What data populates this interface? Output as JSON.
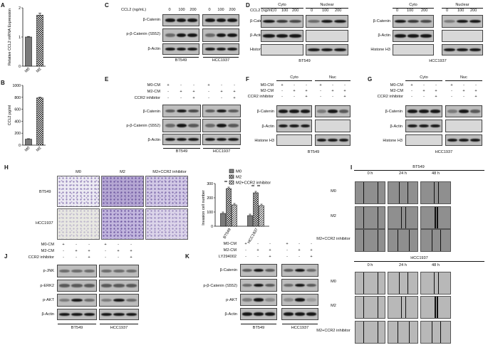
{
  "panels": {
    "A": "A",
    "B": "B",
    "C": "C",
    "D": "D",
    "E": "E",
    "F": "F",
    "G": "G",
    "H": "H",
    "I": "I",
    "J": "J",
    "K": "K"
  },
  "chart_data": [
    {
      "type": "bar",
      "panel": "A",
      "categories": [
        "M0",
        "M2"
      ],
      "values": [
        1.0,
        1.75
      ],
      "errors": [
        0.02,
        0.07
      ],
      "ylabel": "Relative CCL2 mRNA Expression",
      "ylim": [
        0,
        2
      ],
      "yticks": [
        0,
        1,
        2
      ],
      "grid": false
    },
    {
      "type": "bar",
      "panel": "B",
      "categories": [
        "M0",
        "M2"
      ],
      "values": [
        100,
        790
      ],
      "errors": [
        8,
        12
      ],
      "ylabel": "CCL2 pg/ml",
      "ylim": [
        0,
        1000
      ],
      "yticks": [
        0,
        200,
        400,
        600,
        800,
        1000
      ],
      "grid": false
    },
    {
      "type": "bar",
      "panel": "H",
      "ylabel": "Invasion cell number",
      "categories": [
        "BT549",
        "HCC1937"
      ],
      "ylim": [
        0,
        300
      ],
      "yticks": [
        0,
        100,
        200,
        300
      ],
      "series": [
        {
          "name": "M0",
          "values": [
            90,
            75
          ]
        },
        {
          "name": "M2",
          "values": [
            265,
            235
          ]
        },
        {
          "name": "M2+CCR2 inhibitor",
          "values": [
            150,
            145
          ]
        }
      ],
      "significance": [
        "**",
        "**",
        "**",
        "**"
      ],
      "legend": "top-right"
    }
  ],
  "C": {
    "ccl2_label": "CCL2 (ng/mL)",
    "doses": [
      "0",
      "100",
      "200"
    ],
    "rows": [
      "β-Catenin",
      "p-β-Catenin (S552)",
      "β-Actin"
    ],
    "cells": [
      "BT549",
      "HCC1937"
    ]
  },
  "D": {
    "ccl2_label": "CCL2 (ng/ml)",
    "doses": [
      "0",
      "100",
      "200"
    ],
    "groups": [
      "Cyto",
      "Nuclear"
    ],
    "rows": [
      "β-Catenin",
      "β-Actin",
      "Histone H3"
    ],
    "cells": [
      "BT549",
      "HCC1937"
    ]
  },
  "E": {
    "conds": [
      "M0-CM",
      "M2-CM",
      "CCR2 inhibitor"
    ],
    "signs": [
      [
        "+",
        "-",
        "-",
        "+",
        "-",
        "-"
      ],
      [
        "-",
        "+",
        "+",
        "-",
        "+",
        "+"
      ],
      [
        "-",
        "-",
        "+",
        "-",
        "-",
        "+"
      ]
    ],
    "rows": [
      "β-Catenin",
      "p-β-Catenin (S552)",
      "β-Actin"
    ],
    "cells": [
      "BT549",
      "HCC1937"
    ]
  },
  "F": {
    "groups": [
      "Cyto",
      "Nuc"
    ],
    "conds": [
      "M0-CM",
      "M2-CM",
      "CCR2 inhibitor"
    ],
    "signs": [
      [
        "+",
        "-",
        "-",
        "+",
        "-",
        "-"
      ],
      [
        "-",
        "+",
        "+",
        "-",
        "+",
        "+"
      ],
      [
        "-",
        "-",
        "+",
        "-",
        "-",
        "+"
      ]
    ],
    "rows": [
      "β-Catenin",
      "β-Actin",
      "Histone H3"
    ],
    "cell": "BT549"
  },
  "G": {
    "groups": [
      "Cyto",
      "Nuc"
    ],
    "conds": [
      "M0-CM",
      "M2-CM",
      "CCR2 inhibitor"
    ],
    "signs": [
      [
        "+",
        "-",
        "-",
        "+",
        "-",
        "-"
      ],
      [
        "-",
        "+",
        "+",
        "-",
        "+",
        "+"
      ],
      [
        "-",
        "-",
        "+",
        "-",
        "-",
        "+"
      ]
    ],
    "rows": [
      "β-Catenin",
      "β-Actin",
      "Histone H3"
    ],
    "cell": "HCC1937"
  },
  "H": {
    "cols": [
      "M0",
      "M2",
      "M2+CCR2 inhibitor"
    ],
    "rows": [
      "BT549",
      "HCC1937"
    ]
  },
  "I": {
    "times": [
      "0 h",
      "24 h",
      "48 h"
    ],
    "conds": [
      "M0",
      "M2",
      "M2+CCR2 inhibitor"
    ],
    "cells": [
      "BT549",
      "HCC1937"
    ]
  },
  "J": {
    "conds": [
      "M0-CM",
      "M2-CM",
      "CCR2 inhibitor"
    ],
    "signs": [
      [
        "+",
        "-",
        "-",
        "+",
        "-",
        "-"
      ],
      [
        "-",
        "+",
        "+",
        "-",
        "+",
        "+"
      ],
      [
        "-",
        "-",
        "+",
        "-",
        "-",
        "+"
      ]
    ],
    "rows": [
      "p-JNK",
      "p-ERK2",
      "p-AKT",
      "β-Actin"
    ],
    "cells": [
      "BT549",
      "HCC1937"
    ]
  },
  "K": {
    "conds": [
      "M0-CM",
      "M2-CM",
      "LY294002"
    ],
    "signs": [
      [
        "+",
        "-",
        "-",
        "+",
        "-",
        "-"
      ],
      [
        "-",
        "+",
        "+",
        "-",
        "+",
        "+"
      ],
      [
        "-",
        "-",
        "+",
        "-",
        "-",
        "+"
      ]
    ],
    "rows": [
      "β-Catenin",
      "p-β-Catenin (S552)",
      "p-AKT",
      "β-Actin"
    ],
    "cells": [
      "BT549",
      "HCC1937"
    ]
  }
}
